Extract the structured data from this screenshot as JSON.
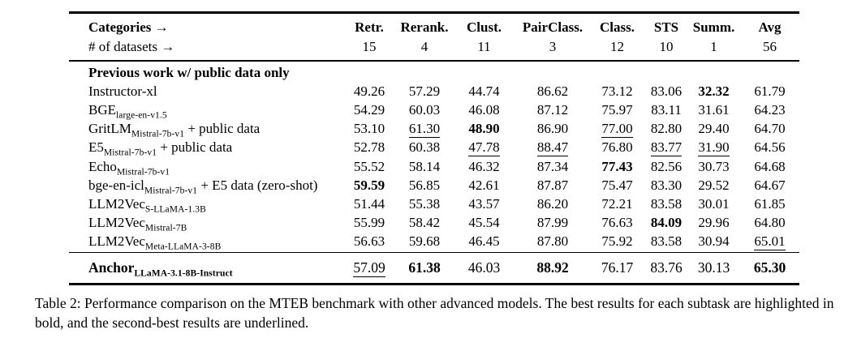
{
  "table": {
    "header": {
      "categories_label": "Categories →",
      "datasets_label": "# of datasets →",
      "columns": [
        "Retr.",
        "Rerank.",
        "Clust.",
        "PairClass.",
        "Class.",
        "STS",
        "Summ.",
        "Avg"
      ],
      "dataset_counts": [
        "15",
        "4",
        "11",
        "3",
        "12",
        "10",
        "1",
        "56"
      ]
    },
    "section_header": "Previous work w/ public data only",
    "rows": [
      {
        "main": "Instructor-xl",
        "sub": "",
        "suffix": "",
        "cells": [
          {
            "v": "49.26",
            "s": "plain"
          },
          {
            "v": "57.29",
            "s": "plain"
          },
          {
            "v": "44.74",
            "s": "plain"
          },
          {
            "v": "86.62",
            "s": "plain"
          },
          {
            "v": "73.12",
            "s": "plain"
          },
          {
            "v": "83.06",
            "s": "plain"
          },
          {
            "v": "32.32",
            "s": "bold"
          },
          {
            "v": "61.79",
            "s": "plain"
          }
        ]
      },
      {
        "main": "BGE",
        "sub": "large-en-v1.5",
        "suffix": "",
        "cells": [
          {
            "v": "54.29",
            "s": "plain"
          },
          {
            "v": "60.03",
            "s": "plain"
          },
          {
            "v": "46.08",
            "s": "plain"
          },
          {
            "v": "87.12",
            "s": "plain"
          },
          {
            "v": "75.97",
            "s": "plain"
          },
          {
            "v": "83.11",
            "s": "plain"
          },
          {
            "v": "31.61",
            "s": "plain"
          },
          {
            "v": "64.23",
            "s": "plain"
          }
        ]
      },
      {
        "main": "GritLM",
        "sub": "Mistral-7b-v1",
        "suffix": " + public data",
        "cells": [
          {
            "v": "53.10",
            "s": "plain"
          },
          {
            "v": "61.30",
            "s": "underline"
          },
          {
            "v": "48.90",
            "s": "bold"
          },
          {
            "v": "86.90",
            "s": "plain"
          },
          {
            "v": "77.00",
            "s": "underline"
          },
          {
            "v": "82.80",
            "s": "plain"
          },
          {
            "v": "29.40",
            "s": "plain"
          },
          {
            "v": "64.70",
            "s": "plain"
          }
        ]
      },
      {
        "main": "E5",
        "sub": "Mistral-7b-v1",
        "suffix": " + public data",
        "cells": [
          {
            "v": "52.78",
            "s": "plain"
          },
          {
            "v": "60.38",
            "s": "plain"
          },
          {
            "v": "47.78",
            "s": "underline"
          },
          {
            "v": "88.47",
            "s": "underline"
          },
          {
            "v": "76.80",
            "s": "plain"
          },
          {
            "v": "83.77",
            "s": "underline"
          },
          {
            "v": "31.90",
            "s": "underline"
          },
          {
            "v": "64.56",
            "s": "plain"
          }
        ]
      },
      {
        "main": "Echo",
        "sub": "Mistral-7b-v1",
        "suffix": "",
        "cells": [
          {
            "v": "55.52",
            "s": "plain"
          },
          {
            "v": "58.14",
            "s": "plain"
          },
          {
            "v": "46.32",
            "s": "plain"
          },
          {
            "v": "87.34",
            "s": "plain"
          },
          {
            "v": "77.43",
            "s": "bold"
          },
          {
            "v": "82.56",
            "s": "plain"
          },
          {
            "v": "30.73",
            "s": "plain"
          },
          {
            "v": "64.68",
            "s": "plain"
          }
        ]
      },
      {
        "main": "bge-en-icl",
        "sub": "Mistral-7b-v1",
        "suffix": " + E5 data (zero-shot)",
        "cells": [
          {
            "v": "59.59",
            "s": "bold"
          },
          {
            "v": "56.85",
            "s": "plain"
          },
          {
            "v": "42.61",
            "s": "plain"
          },
          {
            "v": "87.87",
            "s": "plain"
          },
          {
            "v": "75.47",
            "s": "plain"
          },
          {
            "v": "83.30",
            "s": "plain"
          },
          {
            "v": "29.52",
            "s": "plain"
          },
          {
            "v": "64.67",
            "s": "plain"
          }
        ]
      },
      {
        "main": "LLM2Vec",
        "sub": "S-LLaMA-1.3B",
        "suffix": "",
        "cells": [
          {
            "v": "51.44",
            "s": "plain"
          },
          {
            "v": "55.38",
            "s": "plain"
          },
          {
            "v": "43.57",
            "s": "plain"
          },
          {
            "v": "86.20",
            "s": "plain"
          },
          {
            "v": "72.21",
            "s": "plain"
          },
          {
            "v": "83.58",
            "s": "plain"
          },
          {
            "v": "30.01",
            "s": "plain"
          },
          {
            "v": "61.85",
            "s": "plain"
          }
        ]
      },
      {
        "main": "LLM2Vec",
        "sub": "Mistral-7B",
        "suffix": "",
        "cells": [
          {
            "v": "55.99",
            "s": "plain"
          },
          {
            "v": "58.42",
            "s": "plain"
          },
          {
            "v": "45.54",
            "s": "plain"
          },
          {
            "v": "87.99",
            "s": "plain"
          },
          {
            "v": "76.63",
            "s": "plain"
          },
          {
            "v": "84.09",
            "s": "bold"
          },
          {
            "v": "29.96",
            "s": "plain"
          },
          {
            "v": "64.80",
            "s": "plain"
          }
        ]
      },
      {
        "main": "LLM2Vec",
        "sub": "Meta-LLaMA-3-8B",
        "suffix": "",
        "cells": [
          {
            "v": "56.63",
            "s": "plain"
          },
          {
            "v": "59.68",
            "s": "plain"
          },
          {
            "v": "46.45",
            "s": "plain"
          },
          {
            "v": "87.80",
            "s": "plain"
          },
          {
            "v": "75.92",
            "s": "plain"
          },
          {
            "v": "83.58",
            "s": "plain"
          },
          {
            "v": "30.94",
            "s": "plain"
          },
          {
            "v": "65.01",
            "s": "underline"
          }
        ]
      }
    ],
    "anchor_row": {
      "main": "Anchor",
      "sub": "LLaMA-3.1-8B-Instruct",
      "suffix": "",
      "cells": [
        {
          "v": "57.09",
          "s": "underline"
        },
        {
          "v": "61.38",
          "s": "bold"
        },
        {
          "v": "46.03",
          "s": "plain"
        },
        {
          "v": "88.92",
          "s": "bold"
        },
        {
          "v": "76.17",
          "s": "plain"
        },
        {
          "v": "83.76",
          "s": "plain"
        },
        {
          "v": "30.13",
          "s": "plain"
        },
        {
          "v": "65.30",
          "s": "bold"
        }
      ]
    }
  },
  "caption": {
    "text": "Table 2: Performance comparison on the MTEB benchmark with other advanced models. The best results for each subtask are highlighted in bold, and the second-best results are underlined."
  }
}
